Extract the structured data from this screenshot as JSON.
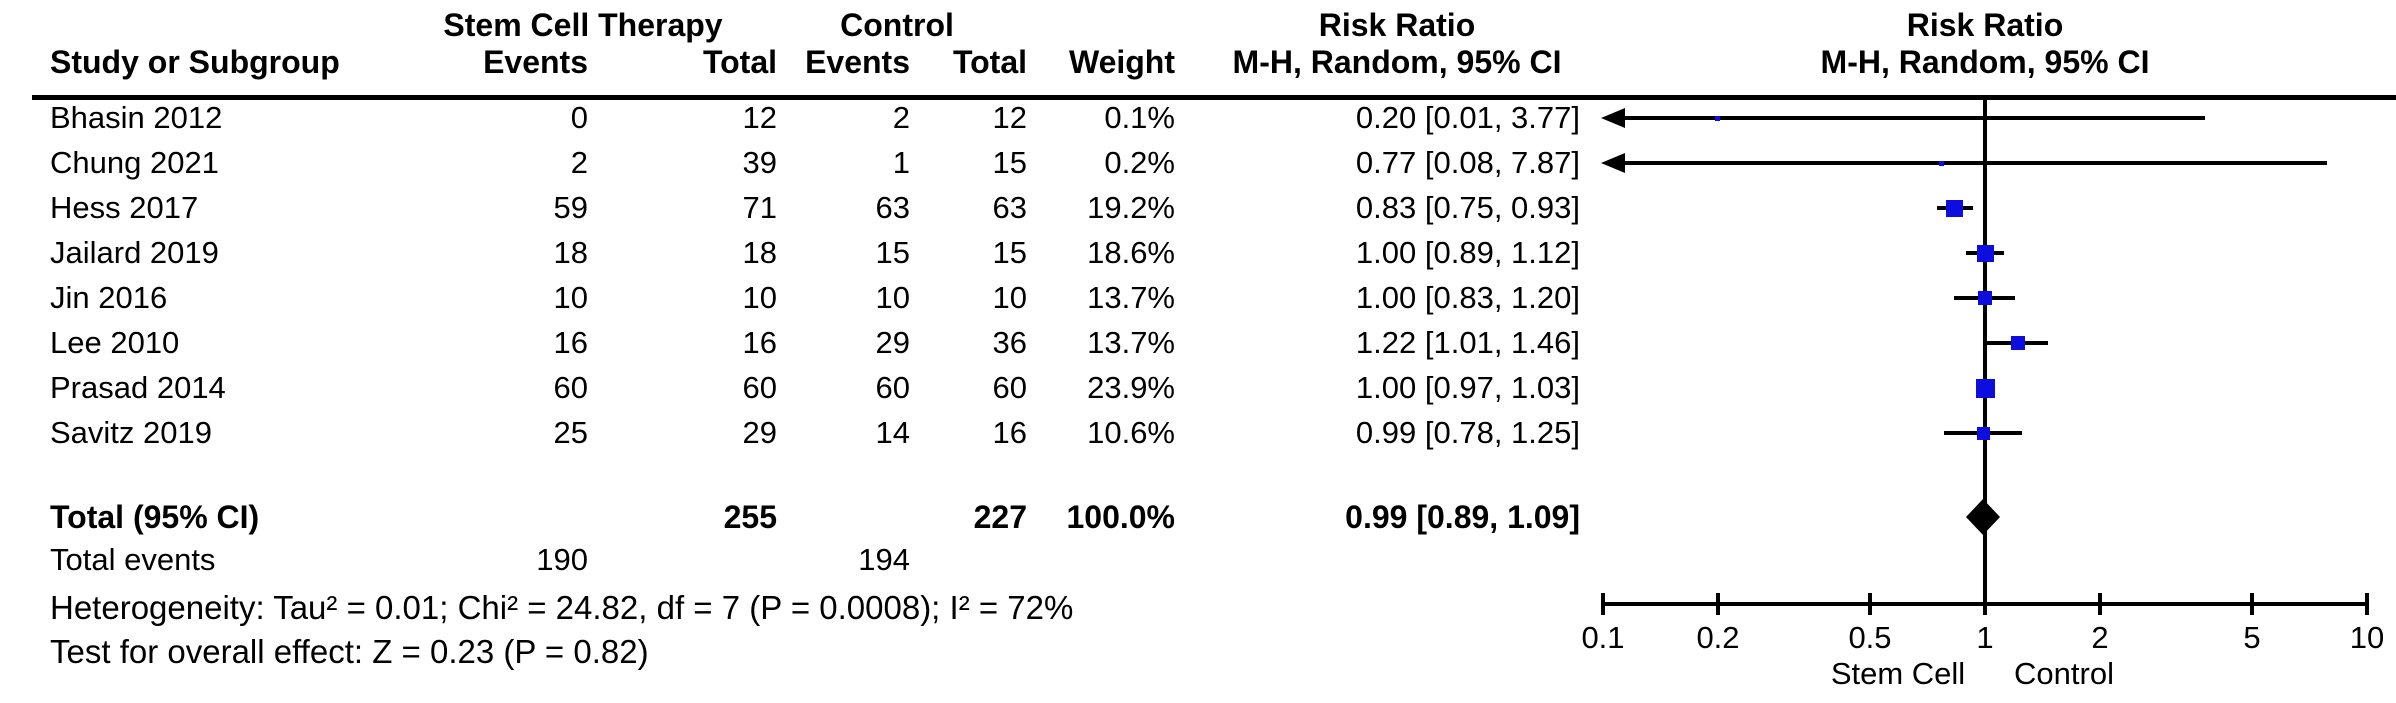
{
  "header": {
    "group_experimental": "Stem Cell Therapy",
    "group_control": "Control",
    "effect_title_text": "Risk Ratio",
    "effect_title_plot": "Risk Ratio",
    "col_study": "Study or Subgroup",
    "col_events_exp": "Events",
    "col_total_exp": "Total",
    "col_events_ctl": "Events",
    "col_total_ctl": "Total",
    "col_weight": "Weight",
    "col_ci_text": "M-H, Random, 95% CI",
    "col_ci_plot": "M-H, Random, 95% CI"
  },
  "colors": {
    "marker_blue": "#0d0ddd",
    "diamond_black": "#000000",
    "line_black": "#000000"
  },
  "chart_data": {
    "type": "forest",
    "effect_measure": "Risk Ratio",
    "method": "M-H, Random, 95% CI",
    "x_scale": "log",
    "x_range": [
      0.1,
      10
    ],
    "x_ticks": [
      "0.1",
      "0.2",
      "0.5",
      "1",
      "2",
      "5",
      "10"
    ],
    "x_tick_values": [
      0.1,
      0.2,
      0.5,
      1,
      2,
      5,
      10
    ],
    "favours_left": "Stem Cell",
    "favours_right": "Control",
    "studies": [
      {
        "name": "Bhasin 2012",
        "sc_events": "0",
        "sc_total": "12",
        "c_events": "2",
        "c_total": "12",
        "weight": "0.1%",
        "weight_pct": 0.1,
        "rr": 0.2,
        "ci_low": 0.01,
        "ci_high": 3.77,
        "label": "0.20 [0.01, 3.77]"
      },
      {
        "name": "Chung 2021",
        "sc_events": "2",
        "sc_total": "39",
        "c_events": "1",
        "c_total": "15",
        "weight": "0.2%",
        "weight_pct": 0.2,
        "rr": 0.77,
        "ci_low": 0.08,
        "ci_high": 7.87,
        "label": "0.77 [0.08, 7.87]"
      },
      {
        "name": "Hess 2017",
        "sc_events": "59",
        "sc_total": "71",
        "c_events": "63",
        "c_total": "63",
        "weight": "19.2%",
        "weight_pct": 19.2,
        "rr": 0.83,
        "ci_low": 0.75,
        "ci_high": 0.93,
        "label": "0.83 [0.75, 0.93]"
      },
      {
        "name": "Jailard 2019",
        "sc_events": "18",
        "sc_total": "18",
        "c_events": "15",
        "c_total": "15",
        "weight": "18.6%",
        "weight_pct": 18.6,
        "rr": 1.0,
        "ci_low": 0.89,
        "ci_high": 1.12,
        "label": "1.00 [0.89, 1.12]"
      },
      {
        "name": "Jin 2016",
        "sc_events": "10",
        "sc_total": "10",
        "c_events": "10",
        "c_total": "10",
        "weight": "13.7%",
        "weight_pct": 13.7,
        "rr": 1.0,
        "ci_low": 0.83,
        "ci_high": 1.2,
        "label": "1.00 [0.83, 1.20]"
      },
      {
        "name": "Lee 2010",
        "sc_events": "16",
        "sc_total": "16",
        "c_events": "29",
        "c_total": "36",
        "weight": "13.7%",
        "weight_pct": 13.7,
        "rr": 1.22,
        "ci_low": 1.01,
        "ci_high": 1.46,
        "label": "1.22 [1.01, 1.46]"
      },
      {
        "name": "Prasad 2014",
        "sc_events": "60",
        "sc_total": "60",
        "c_events": "60",
        "c_total": "60",
        "weight": "23.9%",
        "weight_pct": 23.9,
        "rr": 1.0,
        "ci_low": 0.97,
        "ci_high": 1.03,
        "label": "1.00 [0.97, 1.03]"
      },
      {
        "name": "Savitz 2019",
        "sc_events": "25",
        "sc_total": "29",
        "c_events": "14",
        "c_total": "16",
        "weight": "10.6%",
        "weight_pct": 10.6,
        "rr": 0.99,
        "ci_low": 0.78,
        "ci_high": 1.25,
        "label": "0.99 [0.78, 1.25]"
      }
    ],
    "total": {
      "name": "Total (95% CI)",
      "sc_total": "255",
      "c_total": "227",
      "weight": "100.0%",
      "rr": 0.99,
      "ci_low": 0.89,
      "ci_high": 1.09,
      "label": "0.99 [0.89, 1.09]"
    },
    "total_events": {
      "label": "Total events",
      "sc": "190",
      "c": "194"
    },
    "heterogeneity": "Heterogeneity: Tau² = 0.01; Chi² = 24.82, df = 7 (P = 0.0008); I² = 72%",
    "overall_effect": "Test for overall effect: Z = 0.23 (P = 0.82)"
  }
}
